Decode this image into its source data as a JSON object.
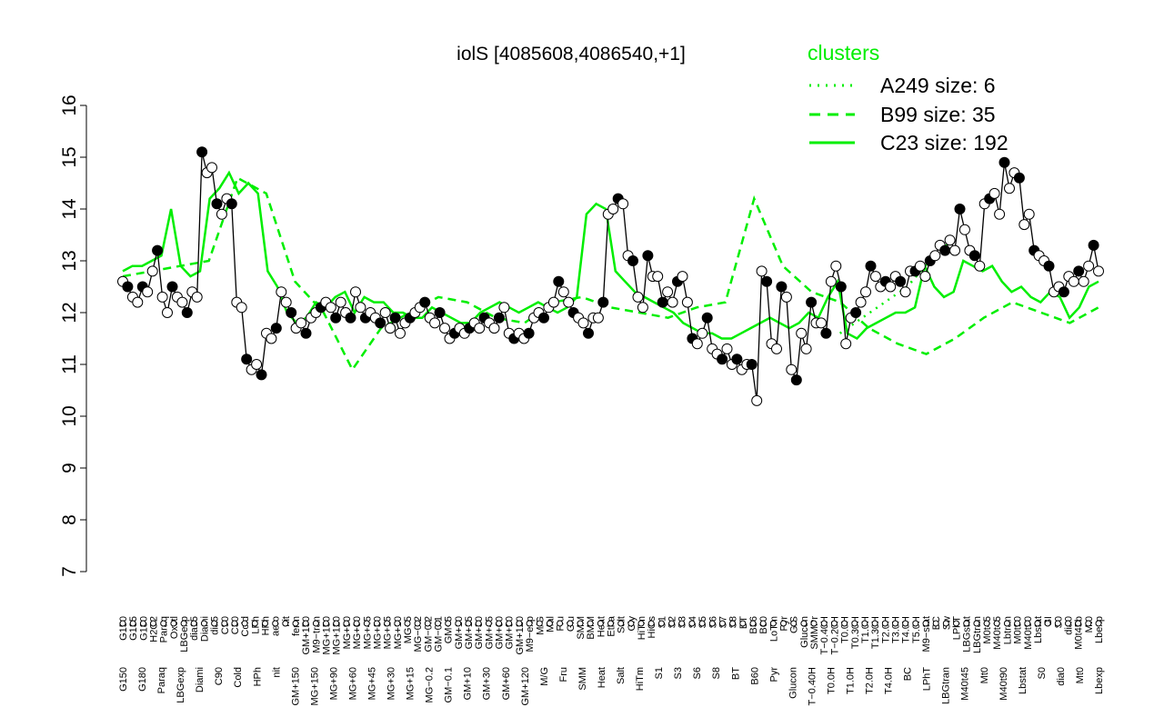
{
  "chart_data": {
    "type": "line",
    "title": "iolS [4085608,4086540,+1]",
    "xlabel": "",
    "ylabel": "",
    "ylim": [
      7,
      16
    ],
    "yticks": [
      7,
      8,
      9,
      10,
      11,
      12,
      13,
      14,
      15,
      16
    ],
    "x_tick_labels_upper": [
      "G150",
      "G135",
      "G180",
      "H2O2",
      "Paraq",
      "Oxctl",
      "LBGexp",
      "dia15",
      "Diami",
      "dia5",
      "C90",
      "C30",
      "Cold",
      "LPh",
      "HPh",
      "aero",
      "nit",
      "ferm",
      "GM+150",
      "M9−tran",
      "MG+150",
      "MG+120",
      "MG+90",
      "MG+60",
      "MG+45",
      "MG+30",
      "MG+15",
      "MG+10",
      "MG+5",
      "MG−0.2",
      "GM−0.2",
      "GM−0.1",
      "GM+5",
      "GM+10",
      "GM+15",
      "GM+30",
      "GM+45",
      "GM+60",
      "GM+90",
      "GM+120",
      "M9−exp",
      "M/G",
      "Mal",
      "Fru",
      "Glu",
      "SMM",
      "BMM",
      "Heat",
      "Etha",
      "Salt",
      "Gly",
      "HiTm",
      "HiOs",
      "S1",
      "S2",
      "S3",
      "S4",
      "S5",
      "S6",
      "S7",
      "S8",
      "BT",
      "B36",
      "B60",
      "LoTm",
      "Pyr",
      "G/S",
      "Glucon",
      "SMMPr",
      "T−0.40H",
      "T−0.20H",
      "T0.0H",
      "T0.30H",
      "T1.0H",
      "T1.30H",
      "T2.0H",
      "T3.0H",
      "T4.0H",
      "T5.0H",
      "M9−stat",
      "BC",
      "Sw",
      "LPhT",
      "LBGstat",
      "LBGtran",
      "M0t45",
      "M40t45",
      "Lbtran",
      "M0t90",
      "M40t90",
      "Lbstat",
      "BI",
      "S0",
      "dia0",
      "M0t45b",
      "Mt0",
      "Lbexp"
    ],
    "x_tick_labels_lower": [
      "G150",
      "G180",
      "Paraq",
      "LBGexp",
      "Diami",
      "C90",
      "Cold",
      "HPh",
      "nit",
      "GM+150",
      "MG+150",
      "MG+90",
      "MG+60",
      "MG+45",
      "MG+30",
      "MG+15",
      "MG−0.2",
      "GM−0.1",
      "GM+10",
      "GM+30",
      "GM+60",
      "GM+120",
      "M/G",
      "Fru",
      "SMM",
      "Heat",
      "Salt",
      "HiTm",
      "S1",
      "S3",
      "S6",
      "S8",
      "BT",
      "B60",
      "Pyr",
      "Glucon",
      "T−0.40H",
      "T0.0H",
      "T1.0H",
      "T2.0H",
      "T4.0H",
      "BC",
      "LPhT",
      "LBGtran",
      "M40t45",
      "Mt0",
      "M40t90",
      "Lbstat",
      "S0",
      "dia0",
      "Mt0",
      "Lbexp"
    ],
    "series": [
      {
        "name": "",
        "values": [
          12.6,
          12.5,
          12.3,
          12.2,
          12.5,
          12.4,
          12.8,
          13.2,
          12.3,
          12.0,
          12.5,
          12.3,
          12.2,
          12.0,
          12.4,
          12.3,
          15.1,
          14.7,
          14.8,
          14.1,
          13.9,
          14.2,
          14.1,
          12.2,
          12.1,
          11.1,
          10.9,
          11.0,
          10.8,
          11.6,
          11.5,
          11.7,
          12.4,
          12.2,
          12.0,
          11.7,
          11.8,
          11.6,
          11.9,
          12.0,
          12.1,
          12.2,
          12.1,
          11.9,
          12.2,
          12.0,
          11.9,
          12.4,
          12.1,
          11.9,
          12.0,
          11.9,
          11.8,
          12.0,
          11.7,
          11.9,
          11.6,
          11.8,
          11.9,
          12.0,
          12.1,
          12.2,
          11.9,
          11.8,
          12.0,
          11.7,
          11.5,
          11.6,
          11.7,
          11.6,
          11.7,
          11.8,
          11.7,
          11.9,
          11.8,
          11.7,
          11.9,
          12.1,
          11.6,
          11.5,
          11.6,
          11.5,
          11.6,
          11.9,
          12.0,
          11.9,
          12.1,
          12.2,
          12.6,
          12.4,
          12.2,
          12.0,
          11.9,
          11.8,
          11.6,
          11.9,
          11.9,
          12.2,
          13.9,
          14.0,
          14.2,
          14.1,
          13.1,
          13.0,
          12.3,
          12.1,
          13.1,
          12.7,
          12.7,
          12.2,
          12.4,
          12.2,
          12.6,
          12.7,
          12.2,
          11.5,
          11.4,
          11.6,
          11.9,
          11.3,
          11.2,
          11.1,
          11.3,
          11.0,
          11.1,
          10.9,
          11.0,
          11.0,
          10.3,
          12.8,
          12.6,
          11.4,
          11.3,
          12.5,
          12.3,
          10.9,
          10.7,
          11.6,
          11.3,
          12.2,
          11.8,
          11.8,
          11.6,
          12.6,
          12.9,
          12.5,
          11.4,
          11.9,
          12.0,
          12.2,
          12.4,
          12.9,
          12.7,
          12.5,
          12.6,
          12.5,
          12.7,
          12.6,
          12.4,
          12.8,
          12.8,
          12.9,
          12.7,
          13.0,
          13.1,
          13.3,
          13.2,
          13.4,
          13.2,
          14.0,
          13.6,
          13.2,
          13.1,
          12.9,
          14.1,
          14.2,
          14.3,
          13.9,
          14.9,
          14.4,
          14.7,
          14.6,
          13.7,
          13.9,
          13.2,
          13.1,
          13.0,
          12.9,
          12.4,
          12.5,
          12.4,
          12.7,
          12.6,
          12.8,
          12.6,
          12.9,
          13.3,
          12.8
        ]
      },
      {
        "name": "C23 size: 192",
        "values": [
          12.8,
          12.9,
          12.9,
          13.0,
          13.1,
          14.0,
          12.9,
          12.7,
          12.8,
          14.2,
          14.4,
          14.7,
          14.3,
          14.5,
          14.3,
          12.8,
          12.5,
          12.0,
          11.8,
          11.9,
          12.2,
          12.1,
          12.3,
          12.4,
          12.0,
          12.3,
          12.2,
          12.2,
          12.0,
          12.0,
          11.9,
          11.9,
          12.1,
          12.0,
          11.9,
          11.8,
          11.8,
          12.0,
          12.1,
          12.2,
          12.1,
          12.0,
          12.1,
          12.2,
          12.1,
          12.0,
          12.1,
          12.3,
          13.9,
          14.1,
          14.0,
          12.8,
          12.6,
          12.4,
          12.3,
          12.2,
          12.1,
          12.0,
          11.8,
          11.7,
          11.6,
          11.6,
          11.5,
          11.5,
          11.6,
          11.7,
          11.8,
          11.9,
          11.8,
          11.7,
          11.8,
          12.0,
          11.9,
          12.3,
          12.6,
          11.6,
          11.5,
          11.7,
          11.8,
          11.9,
          12.0,
          12.0,
          12.1,
          12.9,
          12.5,
          12.3,
          12.4,
          13.0,
          12.9,
          12.8,
          12.9,
          12.6,
          12.4,
          12.5,
          12.3,
          12.2,
          12.4,
          12.3,
          11.9,
          12.1,
          12.5,
          12.6
        ]
      },
      {
        "name": "B99 size: 35",
        "values": [
          12.7,
          12.8,
          12.9,
          13.0,
          14.6,
          14.3,
          12.6,
          12.0,
          10.9,
          11.7,
          12.0,
          12.3,
          12.2,
          11.9,
          11.8,
          12.2,
          12.3,
          12.1,
          12.0,
          11.9,
          12.1,
          12.2,
          14.2,
          12.9,
          12.4,
          12.2,
          11.7,
          11.4,
          11.2,
          11.5,
          11.9,
          12.2,
          12.0,
          11.8,
          12.1
        ]
      },
      {
        "name": "A249 size: 6",
        "values": [
          11.6,
          11.9,
          12.2,
          12.5,
          13.0,
          13.4
        ]
      }
    ],
    "legend": {
      "title": "clusters",
      "position": "top-right",
      "entries": [
        {
          "label": "A249 size: 6",
          "style": "dotted"
        },
        {
          "label": "B99 size: 35",
          "style": "dashed"
        },
        {
          "label": "C23 size: 192",
          "style": "solid"
        }
      ]
    },
    "colors": {
      "observed_line": "#000000",
      "point_fill": "#ffffff",
      "point_fill_dark": "#000000",
      "cluster": "#00ee00"
    },
    "grid": false
  }
}
